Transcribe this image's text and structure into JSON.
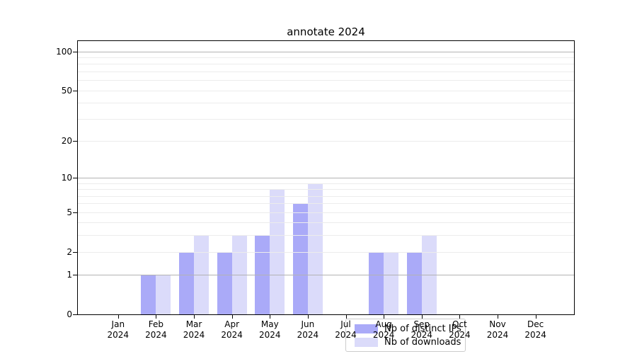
{
  "title": "annotate 2024",
  "legend": {
    "items": [
      {
        "label": "Nb of distinct IPs",
        "color": "#aaaaf8"
      },
      {
        "label": "Nb of downloads",
        "color": "#dbdbfa"
      }
    ]
  },
  "chart_data": {
    "type": "bar",
    "title": "annotate 2024",
    "x_ticks": [
      {
        "month": "Jan",
        "year": "2024"
      },
      {
        "month": "Feb",
        "year": "2024"
      },
      {
        "month": "Mar",
        "year": "2024"
      },
      {
        "month": "Apr",
        "year": "2024"
      },
      {
        "month": "May",
        "year": "2024"
      },
      {
        "month": "Jun",
        "year": "2024"
      },
      {
        "month": "Jul",
        "year": "2024"
      },
      {
        "month": "Aug",
        "year": "2024"
      },
      {
        "month": "Sep",
        "year": "2024"
      },
      {
        "month": "Oct",
        "year": "2024"
      },
      {
        "month": "Nov",
        "year": "2024"
      },
      {
        "month": "Dec",
        "year": "2024"
      }
    ],
    "series": [
      {
        "name": "Nb of distinct IPs",
        "color": "#aaaaf8",
        "values": [
          0,
          1,
          2,
          2,
          3,
          6,
          0,
          2,
          2,
          0,
          0,
          0
        ]
      },
      {
        "name": "Nb of downloads",
        "color": "#dbdbfa",
        "values": [
          0,
          1,
          3,
          3,
          8,
          9,
          0,
          2,
          3,
          0,
          0,
          0
        ]
      }
    ],
    "yscale": "log10(value+1)",
    "ylim": [
      0,
      120
    ],
    "y_tick_values": [
      0,
      1,
      2,
      5,
      10,
      20,
      50,
      100
    ],
    "y_tick_labels": [
      "0",
      "1",
      "2",
      "5",
      "10",
      "20",
      "50",
      "100"
    ],
    "grid": {
      "major_values": [
        1,
        10,
        100
      ],
      "minor_values": [
        2,
        3,
        4,
        5,
        6,
        7,
        8,
        9,
        20,
        30,
        40,
        50,
        60,
        70,
        80,
        90
      ],
      "major_color": "#b3b3b3",
      "minor_color": "#ececec"
    },
    "legend_position": "inside lower-center",
    "grid_on": true
  }
}
